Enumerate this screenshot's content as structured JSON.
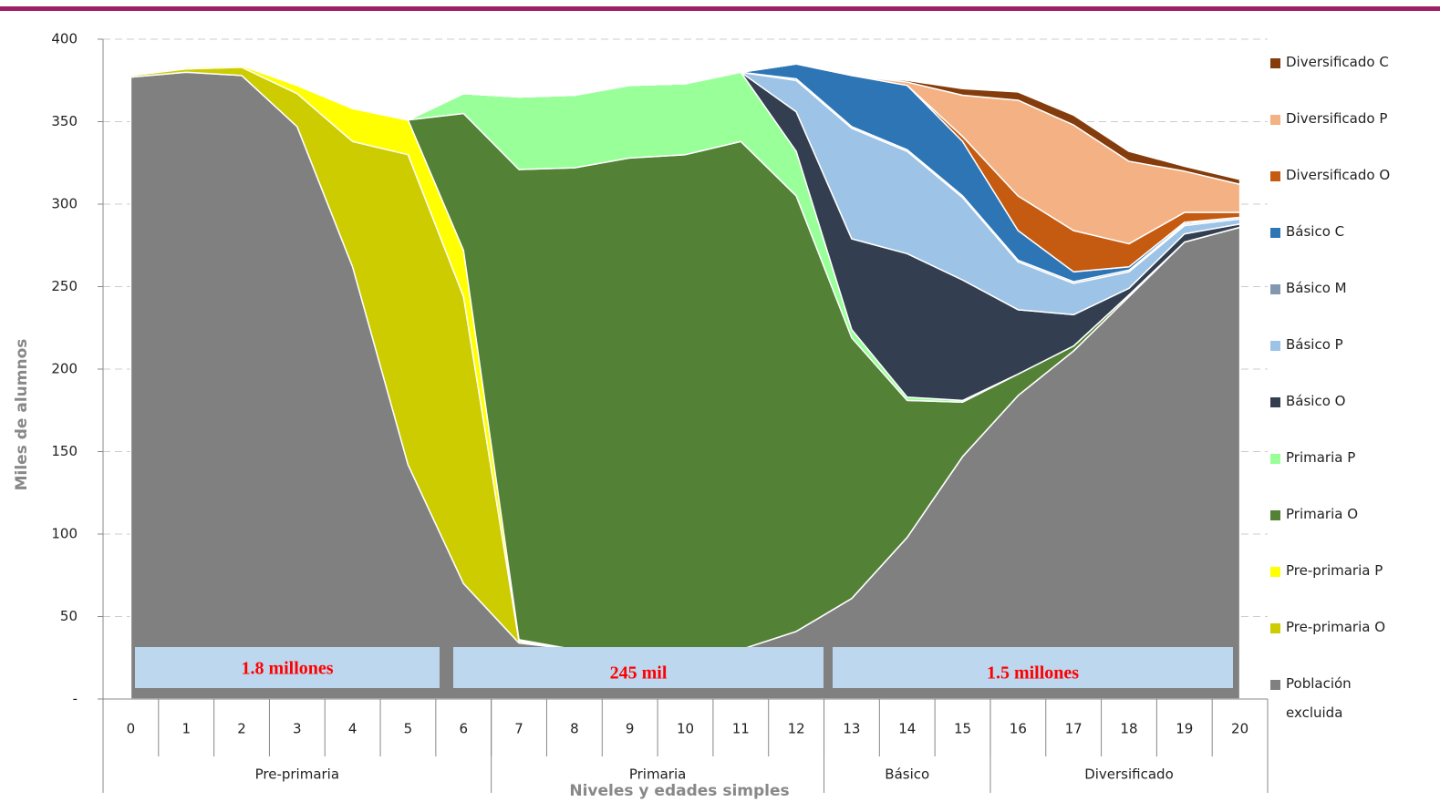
{
  "chart_data": {
    "type": "stacked_area",
    "y_label": "Miles de alumnos",
    "x_label": "Niveles y edades simples",
    "categories": [
      "0",
      "1",
      "2",
      "3",
      "4",
      "5",
      "6",
      "7",
      "8",
      "9",
      "10",
      "11",
      "12",
      "13",
      "14",
      "15",
      "16",
      "17",
      "18",
      "19",
      "20"
    ],
    "groups": [
      "Pre-primaria",
      "Primaria",
      "Básico",
      "Diversificado"
    ],
    "annotations": [
      "1.8 millones",
      "245 mil",
      "1.5 millones"
    ],
    "ylim": [
      0,
      400
    ],
    "yticks": [
      {
        "value": 0,
        "label": "-"
      },
      50,
      100,
      150,
      200,
      250,
      300,
      350,
      400
    ],
    "grid": true,
    "series": [
      {
        "name": "Población excluida",
        "color": "#808080",
        "values": [
          377,
          380,
          378,
          347,
          262,
          142,
          70,
          34,
          30,
          28,
          28,
          30,
          41,
          61,
          98,
          147,
          184,
          211,
          244,
          277,
          286
        ]
      },
      {
        "name": "Pre-primaria O",
        "color": "#cccc00",
        "values": [
          1,
          2,
          5,
          20,
          76,
          188,
          174,
          1,
          0,
          0,
          0,
          0,
          0,
          0,
          0,
          0,
          0,
          0,
          0,
          0,
          0
        ]
      },
      {
        "name": "Pre-primaria P",
        "color": "#ffff00",
        "values": [
          0,
          1,
          1,
          5,
          20,
          21,
          28,
          1,
          0,
          0,
          0,
          0,
          0,
          0,
          0,
          0,
          0,
          0,
          0,
          0,
          0
        ]
      },
      {
        "name": "Primaria O",
        "color": "#538135",
        "values": [
          0,
          0,
          0,
          0,
          0,
          0,
          83,
          285,
          292,
          300,
          302,
          308,
          264,
          158,
          83,
          33,
          13,
          3,
          1,
          0,
          0
        ]
      },
      {
        "name": "Primaria P",
        "color": "#99ff99",
        "values": [
          0,
          0,
          0,
          0,
          0,
          0,
          12,
          44,
          44,
          44,
          43,
          42,
          27,
          5,
          2,
          1,
          0,
          0,
          0,
          0,
          0
        ]
      },
      {
        "name": "Básico O",
        "color": "#333f50",
        "values": [
          0,
          0,
          0,
          0,
          0,
          0,
          0,
          0,
          0,
          0,
          0,
          0,
          24,
          55,
          87,
          73,
          39,
          19,
          4,
          5,
          2
        ]
      },
      {
        "name": "Básico P",
        "color": "#9dc3e6",
        "values": [
          0,
          0,
          0,
          0,
          0,
          0,
          0,
          0,
          0,
          0,
          0,
          0,
          19,
          67,
          62,
          50,
          29,
          19,
          10,
          5,
          3
        ]
      },
      {
        "name": "Básico M",
        "color": "#8497b0",
        "values": [
          0,
          0,
          0,
          0,
          0,
          0,
          0,
          0,
          0,
          0,
          0,
          0,
          1,
          1,
          1,
          1,
          1,
          1,
          1,
          1,
          1
        ]
      },
      {
        "name": "Básico C",
        "color": "#2e75b6",
        "values": [
          0,
          0,
          0,
          0,
          0,
          0,
          0,
          0,
          0,
          0,
          0,
          0,
          9,
          31,
          39,
          33,
          18,
          6,
          2,
          1,
          0
        ]
      },
      {
        "name": "Diversificado O",
        "color": "#c55a11",
        "values": [
          0,
          0,
          0,
          0,
          0,
          0,
          0,
          0,
          0,
          0,
          0,
          0,
          0,
          0,
          0,
          3,
          21,
          25,
          14,
          6,
          3
        ]
      },
      {
        "name": "Diversificado P",
        "color": "#f4b183",
        "values": [
          0,
          0,
          0,
          0,
          0,
          0,
          0,
          0,
          0,
          0,
          0,
          0,
          0,
          0,
          2,
          25,
          58,
          64,
          50,
          25,
          17
        ]
      },
      {
        "name": "Diversificado C",
        "color": "#843c0c",
        "values": [
          0,
          0,
          0,
          0,
          0,
          0,
          0,
          0,
          0,
          0,
          0,
          0,
          0,
          0,
          1,
          4,
          5,
          6,
          6,
          3,
          3
        ]
      }
    ]
  }
}
